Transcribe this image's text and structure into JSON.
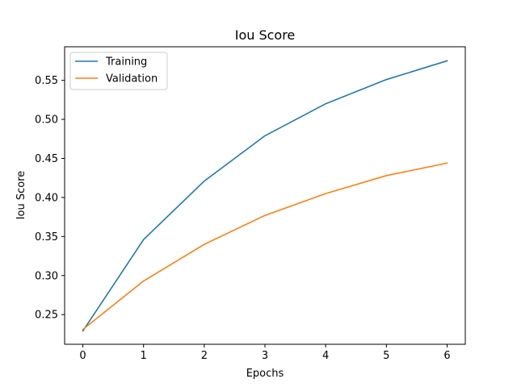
{
  "chart_data": {
    "type": "line",
    "title": "Iou Score",
    "xlabel": "Epochs",
    "ylabel": "Iou Score",
    "x": [
      0,
      1,
      2,
      3,
      4,
      5,
      6
    ],
    "xticks": [
      "0",
      "1",
      "2",
      "3",
      "4",
      "5",
      "6"
    ],
    "yticks": [
      "0.25",
      "0.30",
      "0.35",
      "0.40",
      "0.45",
      "0.50",
      "0.55"
    ],
    "xlim": [
      -0.3,
      6.3
    ],
    "ylim": [
      0.212,
      0.593
    ],
    "grid": false,
    "legend_position": "top-left",
    "series": [
      {
        "name": "Training",
        "color": "#1f77b4",
        "values": [
          0.229,
          0.346,
          0.421,
          0.479,
          0.52,
          0.551,
          0.575
        ]
      },
      {
        "name": "Validation",
        "color": "#ff7f0e",
        "values": [
          0.231,
          0.293,
          0.34,
          0.377,
          0.405,
          0.428,
          0.444
        ]
      }
    ]
  }
}
